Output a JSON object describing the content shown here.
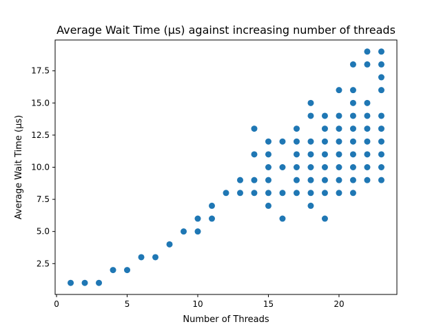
{
  "chart_data": {
    "type": "scatter",
    "title": "Average Wait Time (µs) against increasing number of threads",
    "xlabel": "Number of Threads",
    "ylabel": "Average Wait Time (µs)",
    "xlim": [
      -0.1,
      24.1
    ],
    "ylim": [
      0.1,
      19.9
    ],
    "xticks": [
      0,
      5,
      10,
      15,
      20
    ],
    "xtick_labels": [
      "0",
      "5",
      "10",
      "15",
      "20"
    ],
    "yticks": [
      2.5,
      5.0,
      7.5,
      10.0,
      12.5,
      15.0,
      17.5
    ],
    "ytick_labels": [
      "2.5",
      "5.0",
      "7.5",
      "10.0",
      "12.5",
      "15.0",
      "17.5"
    ],
    "grid": false,
    "marker_color": "#1f77b4",
    "points": [
      [
        1,
        1
      ],
      [
        2,
        1
      ],
      [
        3,
        1
      ],
      [
        4,
        2
      ],
      [
        5,
        2
      ],
      [
        6,
        3
      ],
      [
        7,
        3
      ],
      [
        8,
        4
      ],
      [
        9,
        5
      ],
      [
        10,
        5
      ],
      [
        10,
        6
      ],
      [
        11,
        6
      ],
      [
        11,
        7
      ],
      [
        12,
        8
      ],
      [
        13,
        8
      ],
      [
        13,
        9
      ],
      [
        14,
        8
      ],
      [
        14,
        9
      ],
      [
        14,
        11
      ],
      [
        14,
        13
      ],
      [
        15,
        7
      ],
      [
        15,
        8
      ],
      [
        15,
        9
      ],
      [
        15,
        10
      ],
      [
        15,
        11
      ],
      [
        15,
        12
      ],
      [
        16,
        6
      ],
      [
        16,
        8
      ],
      [
        16,
        10
      ],
      [
        16,
        12
      ],
      [
        17,
        8
      ],
      [
        17,
        9
      ],
      [
        17,
        10
      ],
      [
        17,
        11
      ],
      [
        17,
        12
      ],
      [
        17,
        13
      ],
      [
        18,
        7
      ],
      [
        18,
        8
      ],
      [
        18,
        9
      ],
      [
        18,
        10
      ],
      [
        18,
        11
      ],
      [
        18,
        12
      ],
      [
        18,
        14
      ],
      [
        18,
        15
      ],
      [
        19,
        6
      ],
      [
        19,
        8
      ],
      [
        19,
        9
      ],
      [
        19,
        10
      ],
      [
        19,
        11
      ],
      [
        19,
        12
      ],
      [
        19,
        13
      ],
      [
        19,
        14
      ],
      [
        20,
        8
      ],
      [
        20,
        9
      ],
      [
        20,
        10
      ],
      [
        20,
        11
      ],
      [
        20,
        12
      ],
      [
        20,
        13
      ],
      [
        20,
        14
      ],
      [
        20,
        16
      ],
      [
        21,
        8
      ],
      [
        21,
        9
      ],
      [
        21,
        10
      ],
      [
        21,
        11
      ],
      [
        21,
        12
      ],
      [
        21,
        13
      ],
      [
        21,
        14
      ],
      [
        21,
        15
      ],
      [
        21,
        16
      ],
      [
        21,
        18
      ],
      [
        22,
        9
      ],
      [
        22,
        10
      ],
      [
        22,
        11
      ],
      [
        22,
        12
      ],
      [
        22,
        13
      ],
      [
        22,
        14
      ],
      [
        22,
        15
      ],
      [
        22,
        18
      ],
      [
        22,
        19
      ],
      [
        23,
        9
      ],
      [
        23,
        10
      ],
      [
        23,
        11
      ],
      [
        23,
        12
      ],
      [
        23,
        13
      ],
      [
        23,
        14
      ],
      [
        23,
        16
      ],
      [
        23,
        17
      ],
      [
        23,
        18
      ],
      [
        23,
        19
      ]
    ]
  }
}
